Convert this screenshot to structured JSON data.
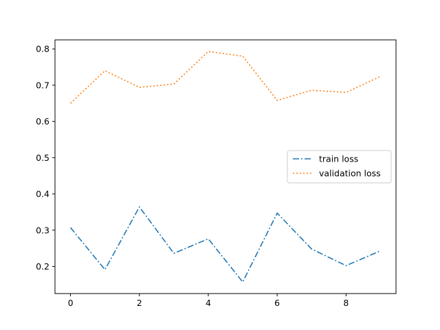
{
  "chart_data": {
    "type": "line",
    "title": "",
    "xlabel": "",
    "ylabel": "",
    "xlim": [
      -0.45,
      9.45
    ],
    "ylim": [
      0.125,
      0.825
    ],
    "x": [
      0,
      1,
      2,
      3,
      4,
      5,
      6,
      7,
      8,
      9
    ],
    "xticks": [
      0,
      2,
      4,
      6,
      8
    ],
    "yticks": [
      0.2,
      0.3,
      0.4,
      0.5,
      0.6,
      0.7,
      0.8
    ],
    "grid": false,
    "legend_position": "center-right",
    "series": [
      {
        "name": "train loss",
        "color": "#1f77b4",
        "linestyle": "dashdot",
        "values": [
          0.307,
          0.191,
          0.364,
          0.236,
          0.276,
          0.157,
          0.347,
          0.248,
          0.202,
          0.243
        ]
      },
      {
        "name": "validation loss",
        "color": "#ff7f0e",
        "linestyle": "dotted",
        "values": [
          0.65,
          0.74,
          0.694,
          0.703,
          0.793,
          0.78,
          0.658,
          0.686,
          0.68,
          0.724
        ]
      }
    ]
  }
}
